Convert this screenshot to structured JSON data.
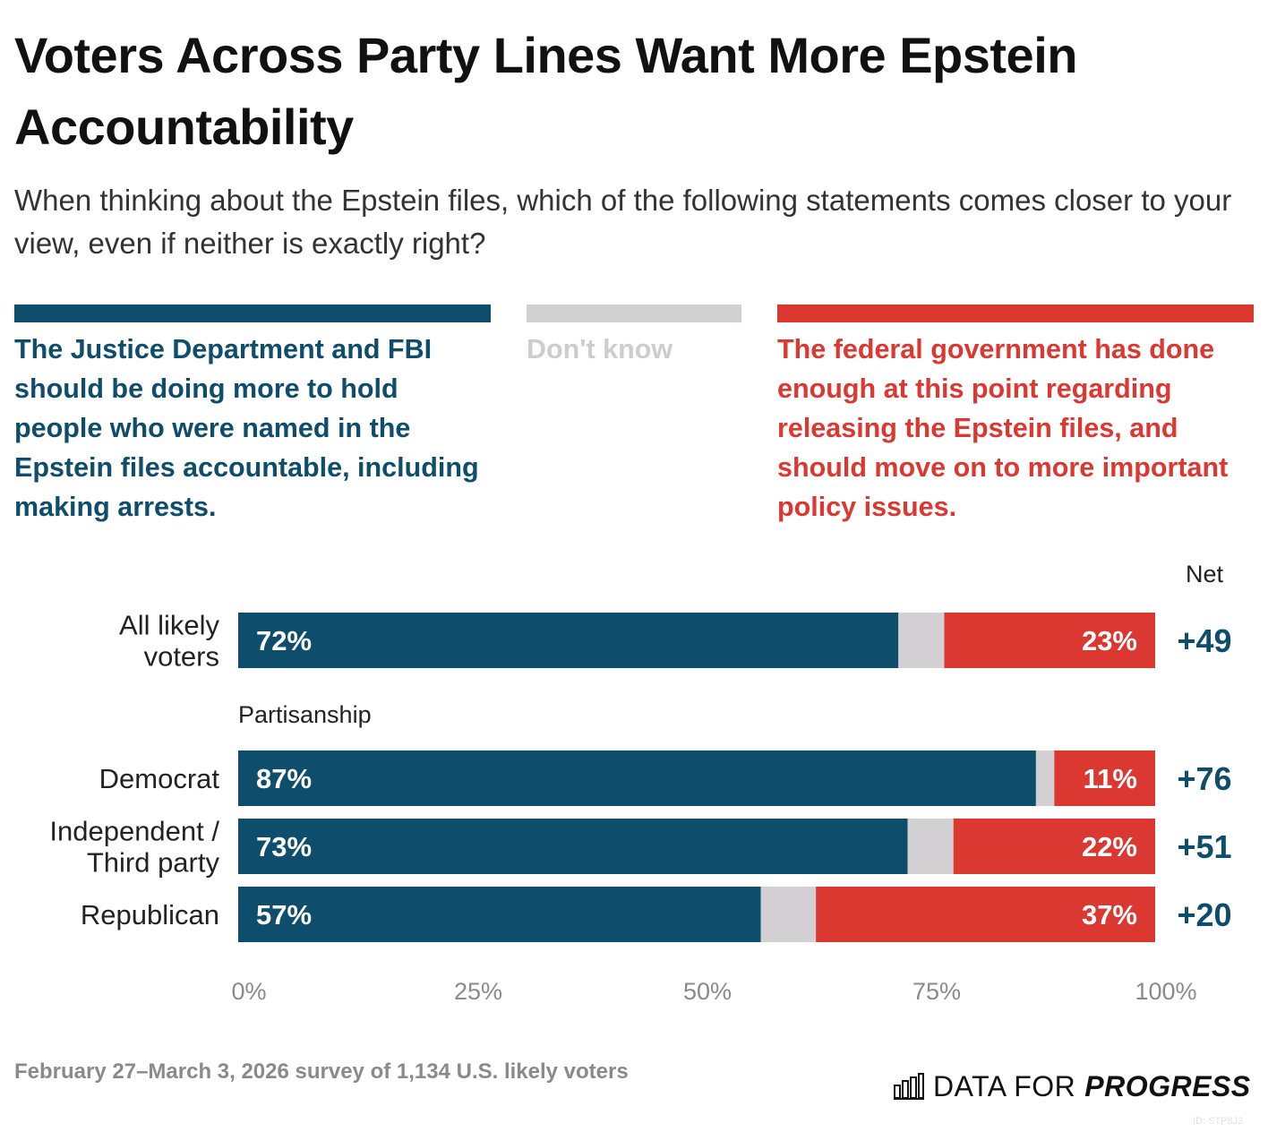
{
  "colors": {
    "support": "#0e4d6b",
    "dont_know": "#d3d0d3",
    "oppose": "#dc3832"
  },
  "brand": {
    "light": "DATA FOR",
    "bold": "PROGRESS",
    "icon": "bar-chart-logo-icon"
  },
  "footnote": "February 27–March 3, 2026 survey of 1,134 U.S. likely voters",
  "chart_id": "ID: STP8J2",
  "chart_data": {
    "type": "bar",
    "orientation": "horizontal",
    "stacked": true,
    "title": "Voters Across Party Lines Want More Epstein Accountability",
    "subtitle": "When thinking about the Epstein files, which of the following statements comes closer to your view, even if neither is exactly right?",
    "legend": [
      {
        "key": "support",
        "label": "The Justice Department and FBI should be doing more to hold people who were named in the Epstein files accountable, including making arrests."
      },
      {
        "key": "dont_know",
        "label": "Don't know"
      },
      {
        "key": "oppose",
        "label": "The federal government has done enough at this point regarding releasing the Epstein files, and should move on to more important policy issues."
      }
    ],
    "legend_position": "top",
    "net_header": "Net",
    "group_label": "Partisanship",
    "categories": [
      "All likely voters",
      "Democrat",
      "Independent / Third party",
      "Republican"
    ],
    "series": [
      {
        "name": "The Justice Department and FBI should be doing more to hold people who were named in the Epstein files accountable, including making arrests.",
        "values": [
          72,
          87,
          73,
          57
        ],
        "labels": [
          "72%",
          "87%",
          "73%",
          "57%"
        ]
      },
      {
        "name": "Don't know",
        "values": [
          5,
          2,
          5,
          6
        ]
      },
      {
        "name": "The federal government has done enough at this point regarding releasing the Epstein files, and should move on to more important policy issues.",
        "values": [
          23,
          11,
          22,
          37
        ],
        "labels": [
          "23%",
          "11%",
          "22%",
          "37%"
        ]
      }
    ],
    "net": [
      "+49",
      "+76",
      "+51",
      "+20"
    ],
    "x_ticks": [
      "0%",
      "25%",
      "50%",
      "75%",
      "100%"
    ],
    "xlim": [
      0,
      100
    ],
    "grid": false
  }
}
